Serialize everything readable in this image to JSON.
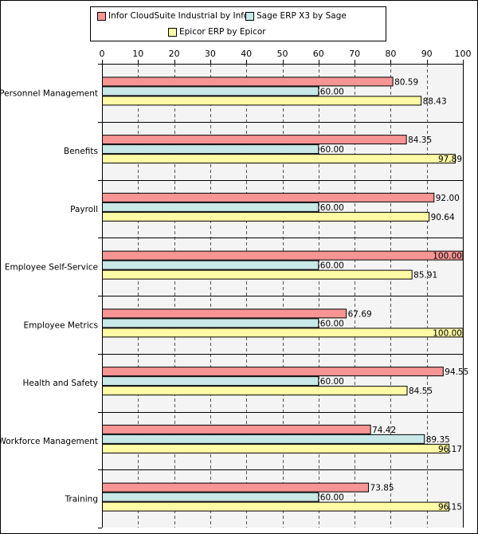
{
  "chart_data": {
    "type": "bar",
    "orientation": "horizontal",
    "categories": [
      "Personnel Management",
      "Benefits",
      "Payroll",
      "Employee Self-Service",
      "Employee Metrics",
      "Health and Safety",
      "Workforce Management",
      "Training"
    ],
    "series": [
      {
        "name": "Infor CloudSuite Industrial by Infor",
        "color": "#F79595",
        "values": [
          80.59,
          84.35,
          92.0,
          100.0,
          67.69,
          94.55,
          74.42,
          73.85
        ],
        "labels": [
          "80.59",
          "84.35",
          "92.00",
          "100.00",
          "67.69",
          "94.55",
          "74.42",
          "73.85"
        ]
      },
      {
        "name": "Sage ERP X3 by Sage",
        "color": "#C9E8E8",
        "values": [
          60.0,
          60.0,
          60.0,
          60.0,
          60.0,
          60.0,
          89.35,
          60.0
        ],
        "labels": [
          "60.00",
          "60.00",
          "60.00",
          "60.00",
          "60.00",
          "60.00",
          "89.35",
          "60.00"
        ]
      },
      {
        "name": "Epicor ERP by Epicor",
        "color": "#FFFAA6",
        "values": [
          88.43,
          97.89,
          90.64,
          85.91,
          100.0,
          84.55,
          96.17,
          96.15
        ],
        "labels": [
          "88.43",
          "97.89",
          "90.64",
          "85.91",
          "100.00",
          "84.55",
          "96.17",
          "96.15"
        ]
      }
    ],
    "xlim": [
      0,
      100
    ],
    "xticks": [
      "0",
      "10",
      "20",
      "30",
      "40",
      "50",
      "60",
      "70",
      "80",
      "90",
      "100"
    ],
    "tick_values": [
      0,
      10,
      20,
      30,
      40,
      50,
      60,
      70,
      80,
      90,
      100
    ],
    "legend_position": "top",
    "grid": true,
    "title": "",
    "xlabel": "",
    "ylabel": ""
  }
}
